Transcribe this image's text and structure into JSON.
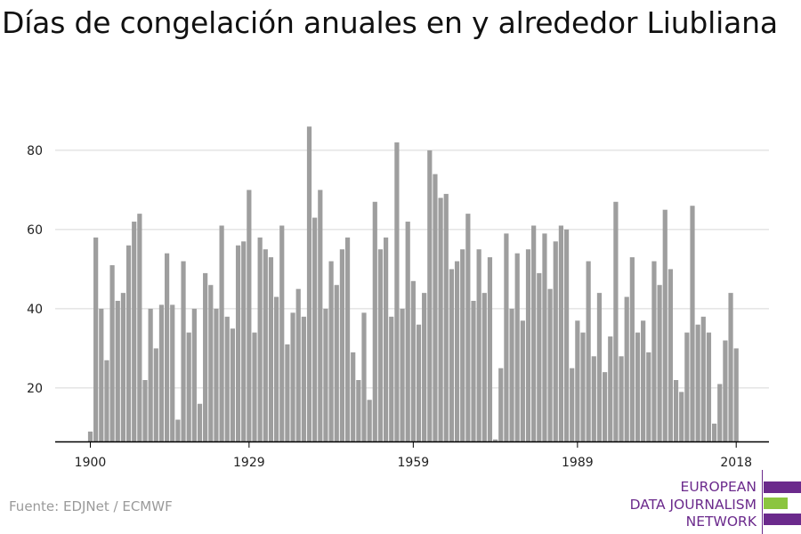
{
  "title": "Días de congelación anuales en y alrededor Liubliana",
  "source": "Fuente: EDJNet / ECMWF",
  "logo": {
    "line1": "EUROPEAN",
    "line2": "DATA JOURNALISM",
    "line3": "NETWORK",
    "colors": [
      "#6b2a8c",
      "#8bc53f",
      "#6b2a8c"
    ]
  },
  "chart_data": {
    "type": "bar",
    "title": "",
    "xlabel": "",
    "ylabel": "",
    "bar_color": "#9e9e9e",
    "grid": true,
    "ylim": [
      6.5,
      90
    ],
    "yticks": [
      20,
      40,
      60,
      80
    ],
    "xticks": [
      1900,
      1929,
      1959,
      1989,
      2018
    ],
    "x": [
      1900,
      1901,
      1902,
      1903,
      1904,
      1905,
      1906,
      1907,
      1908,
      1909,
      1910,
      1911,
      1912,
      1913,
      1914,
      1915,
      1916,
      1917,
      1918,
      1919,
      1920,
      1921,
      1922,
      1923,
      1924,
      1925,
      1926,
      1927,
      1928,
      1929,
      1930,
      1931,
      1932,
      1933,
      1934,
      1935,
      1936,
      1937,
      1938,
      1939,
      1940,
      1941,
      1942,
      1943,
      1944,
      1945,
      1946,
      1947,
      1948,
      1949,
      1950,
      1951,
      1952,
      1953,
      1954,
      1955,
      1956,
      1957,
      1958,
      1959,
      1960,
      1961,
      1962,
      1963,
      1964,
      1965,
      1966,
      1967,
      1968,
      1969,
      1970,
      1971,
      1972,
      1973,
      1974,
      1975,
      1976,
      1977,
      1978,
      1979,
      1980,
      1981,
      1982,
      1983,
      1984,
      1985,
      1986,
      1987,
      1988,
      1989,
      1990,
      1991,
      1992,
      1993,
      1994,
      1995,
      1996,
      1997,
      1998,
      1999,
      2000,
      2001,
      2002,
      2003,
      2004,
      2005,
      2006,
      2007,
      2008,
      2009,
      2010,
      2011,
      2012,
      2013,
      2014,
      2015,
      2016,
      2017,
      2018
    ],
    "values": [
      9,
      58,
      40,
      27,
      51,
      42,
      44,
      56,
      62,
      64,
      22,
      40,
      30,
      41,
      54,
      41,
      12,
      52,
      34,
      40,
      16,
      49,
      46,
      40,
      61,
      38,
      35,
      56,
      57,
      70,
      34,
      58,
      55,
      53,
      43,
      61,
      31,
      39,
      45,
      38,
      86,
      63,
      70,
      40,
      52,
      46,
      55,
      58,
      29,
      22,
      39,
      17,
      67,
      55,
      58,
      38,
      82,
      40,
      62,
      47,
      36,
      44,
      80,
      74,
      68,
      69,
      50,
      52,
      55,
      64,
      42,
      55,
      44,
      53,
      7,
      25,
      59,
      40,
      54,
      37,
      55,
      61,
      49,
      59,
      45,
      57,
      61,
      60,
      25,
      37,
      34,
      52,
      28,
      44,
      24,
      33,
      67,
      28,
      43,
      53,
      34,
      37,
      29,
      52,
      46,
      65,
      50,
      22,
      19,
      34,
      66,
      36,
      38,
      34,
      11,
      21,
      32,
      44,
      30
    ]
  }
}
